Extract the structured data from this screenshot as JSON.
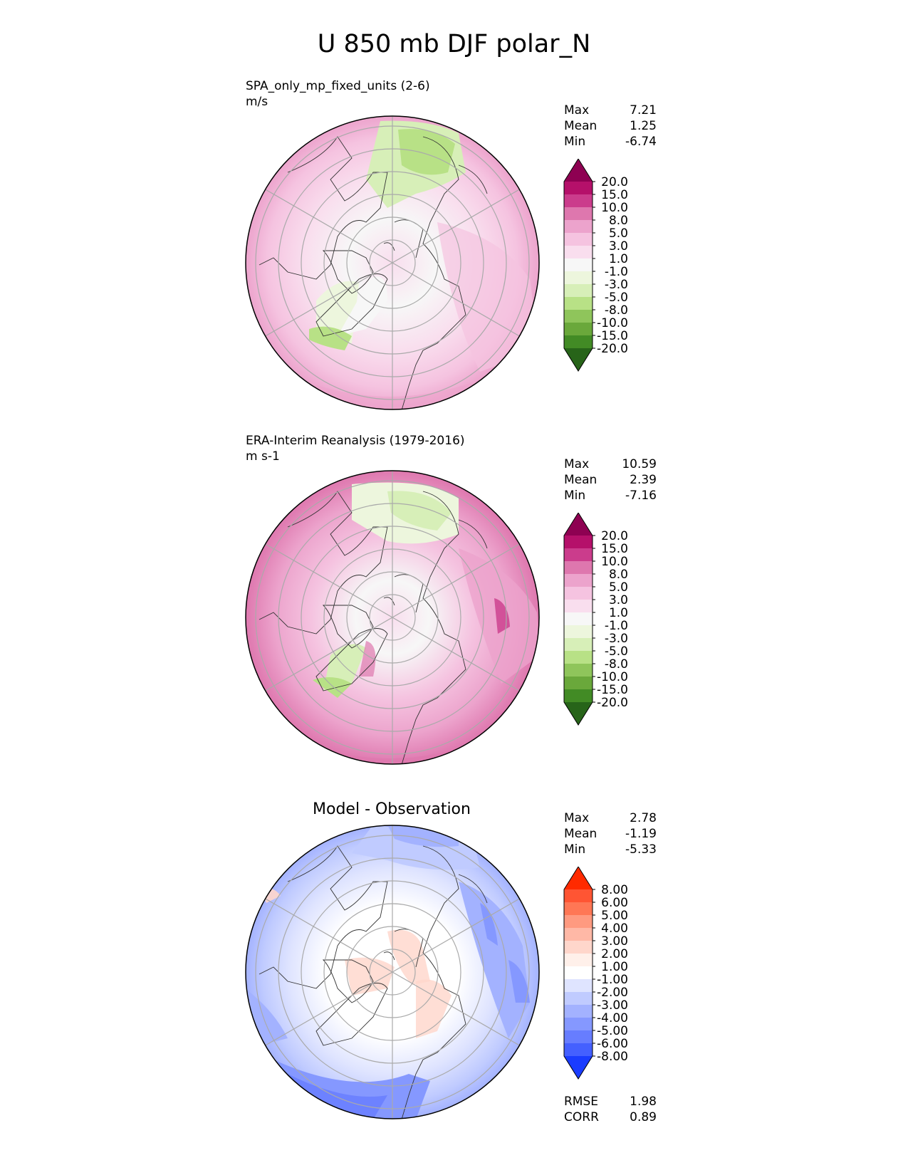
{
  "figure": {
    "title": "U 850 mb DJF polar_N"
  },
  "panels": [
    {
      "id": "test",
      "title": "SPA_only_mp_fixed_units (2-6)",
      "units": "m/s",
      "stats": [
        {
          "label": "Max",
          "value": "7.21"
        },
        {
          "label": "Mean",
          "value": "1.25"
        },
        {
          "label": "Min",
          "value": "-6.74"
        }
      ]
    },
    {
      "id": "ref",
      "title": "ERA-Interim Reanalysis (1979-2016)",
      "units": "m s-1",
      "stats": [
        {
          "label": "Max",
          "value": "10.59"
        },
        {
          "label": "Mean",
          "value": "2.39"
        },
        {
          "label": "Min",
          "value": "-7.16"
        }
      ]
    },
    {
      "id": "diff",
      "title": "Model - Observation",
      "stats": [
        {
          "label": "Max",
          "value": "2.78"
        },
        {
          "label": "Mean",
          "value": "-1.19"
        },
        {
          "label": "Min",
          "value": "-5.33"
        }
      ],
      "metrics": [
        {
          "label": "RMSE",
          "value": "1.98"
        },
        {
          "label": "CORR",
          "value": "0.89"
        }
      ]
    }
  ],
  "colorbars": {
    "field": {
      "ticks": [
        "20.0",
        "15.0",
        "10.0",
        "8.0",
        "5.0",
        "3.0",
        "1.0",
        "-1.0",
        "-3.0",
        "-5.0",
        "-8.0",
        "-10.0",
        "-15.0",
        "-20.0"
      ],
      "colors": [
        "#8e0152",
        "#b5106a",
        "#cb3c8c",
        "#de77ae",
        "#eca3cc",
        "#f5c3e0",
        "#f9deee",
        "#f7f7f7",
        "#edf6dd",
        "#d7efb8",
        "#b8e186",
        "#8fc55b",
        "#6aa83b",
        "#428b25",
        "#276419"
      ]
    },
    "diff": {
      "ticks": [
        "8.00",
        "6.00",
        "5.00",
        "4.00",
        "3.00",
        "2.00",
        "1.00",
        "-1.00",
        "-2.00",
        "-3.00",
        "-4.00",
        "-5.00",
        "-6.00",
        "-8.00"
      ],
      "colors": [
        "#ff2a00",
        "#ff5533",
        "#ff7755",
        "#ff9a80",
        "#ffb8a6",
        "#ffd6cb",
        "#fff0ea",
        "#ffffff",
        "#dfe4ff",
        "#c0cbff",
        "#a3b2ff",
        "#8598ff",
        "#677dff",
        "#4460ff",
        "#1a3cff"
      ]
    }
  },
  "chart_data": [
    {
      "type": "heatmap",
      "projection": "north polar stereographic",
      "title": "SPA_only_mp_fixed_units (2-6)",
      "units": "m/s",
      "variable": "U 850 mb DJF",
      "summary": {
        "max": 7.21,
        "mean": 1.25,
        "min": -6.74
      },
      "levels": [
        -20,
        -15,
        -10,
        -8,
        -5,
        -3,
        -1,
        1,
        3,
        5,
        8,
        10,
        15,
        20
      ]
    },
    {
      "type": "heatmap",
      "projection": "north polar stereographic",
      "title": "ERA-Interim Reanalysis (1979-2016)",
      "units": "m s-1",
      "variable": "U 850 mb DJF",
      "summary": {
        "max": 10.59,
        "mean": 2.39,
        "min": -7.16
      },
      "levels": [
        -20,
        -15,
        -10,
        -8,
        -5,
        -3,
        -1,
        1,
        3,
        5,
        8,
        10,
        15,
        20
      ]
    },
    {
      "type": "heatmap",
      "projection": "north polar stereographic",
      "title": "Model - Observation",
      "variable": "U 850 mb DJF",
      "summary": {
        "max": 2.78,
        "mean": -1.19,
        "min": -5.33,
        "rmse": 1.98,
        "corr": 0.89
      },
      "levels": [
        -8,
        -6,
        -5,
        -4,
        -3,
        -2,
        -1,
        1,
        2,
        3,
        4,
        5,
        6,
        8
      ]
    }
  ]
}
